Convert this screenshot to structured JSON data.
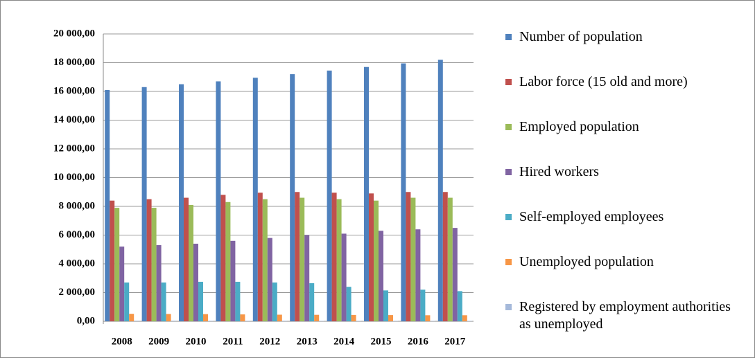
{
  "chart_data": {
    "type": "bar",
    "categories": [
      "2008",
      "2009",
      "2010",
      "2011",
      "2012",
      "2013",
      "2014",
      "2015",
      "2016",
      "2017"
    ],
    "series": [
      {
        "name": "Number of population",
        "color": "#4f81bd",
        "values": [
          16100,
          16300,
          16500,
          16700,
          16950,
          17200,
          17450,
          17700,
          17950,
          18200
        ]
      },
      {
        "name": "Labor force (15 old and more)",
        "color": "#c0504d",
        "values": [
          8400,
          8500,
          8600,
          8800,
          8950,
          9000,
          8950,
          8900,
          9000,
          9000
        ]
      },
      {
        "name": "Employed population",
        "color": "#9bbb59",
        "values": [
          7900,
          7900,
          8100,
          8300,
          8500,
          8600,
          8500,
          8400,
          8600,
          8600
        ]
      },
      {
        "name": "Hired workers",
        "color": "#8064a2",
        "values": [
          5200,
          5300,
          5400,
          5600,
          5800,
          6000,
          6100,
          6300,
          6400,
          6500
        ]
      },
      {
        "name": "Self-employed employees",
        "color": "#4bacc6",
        "values": [
          2700,
          2700,
          2750,
          2750,
          2700,
          2650,
          2400,
          2150,
          2200,
          2100
        ]
      },
      {
        "name": "Unemployed population",
        "color": "#f79646",
        "values": [
          520,
          510,
          500,
          480,
          460,
          450,
          440,
          430,
          420,
          420
        ]
      },
      {
        "name": "Registered by employment authorities as unemployed",
        "color": "#a5b9da",
        "values": [
          40,
          40,
          35,
          35,
          35,
          30,
          30,
          30,
          30,
          30
        ]
      }
    ],
    "ylim": [
      0,
      20000
    ],
    "yticks": [
      {
        "value": 0,
        "label": "0,00"
      },
      {
        "value": 2000,
        "label": "2 000,00"
      },
      {
        "value": 4000,
        "label": "4 000,00"
      },
      {
        "value": 6000,
        "label": "6 000,00"
      },
      {
        "value": 8000,
        "label": "8 000,00"
      },
      {
        "value": 10000,
        "label": "10 000,00"
      },
      {
        "value": 12000,
        "label": "12 000,00"
      },
      {
        "value": 14000,
        "label": "14 000,00"
      },
      {
        "value": 16000,
        "label": "16 000,00"
      },
      {
        "value": 18000,
        "label": "18 000,00"
      },
      {
        "value": 20000,
        "label": "20 000,00"
      }
    ],
    "grid": true,
    "legend": "right"
  }
}
